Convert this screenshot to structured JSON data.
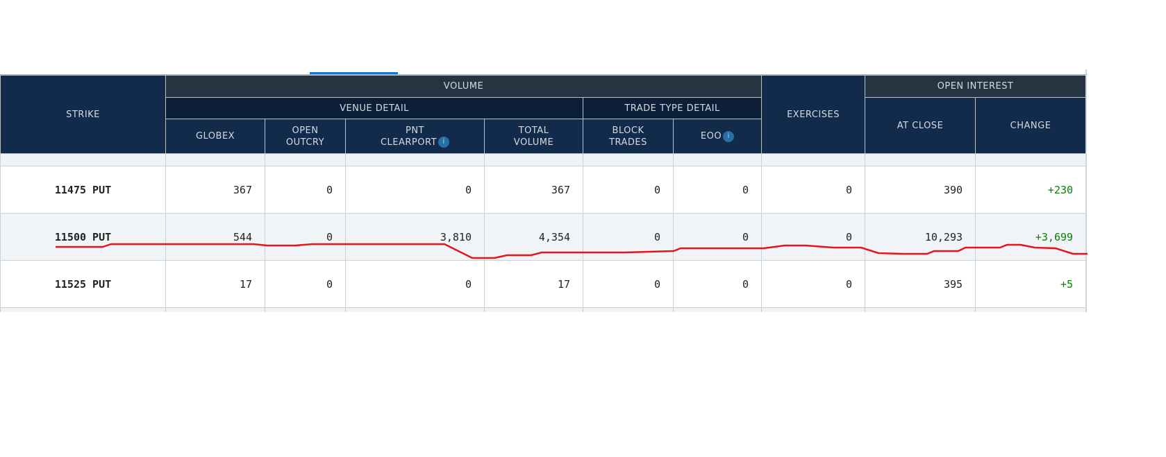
{
  "table": {
    "group_headers": {
      "strike": "STRIKE",
      "volume": "VOLUME",
      "exercises": "EXERCISES",
      "open_interest": "OPEN INTEREST"
    },
    "sub_headers": {
      "venue_detail": "VENUE DETAIL",
      "trade_type_detail": "TRADE TYPE DETAIL"
    },
    "columns": {
      "globex": "GLOBEX",
      "open_outcry_1": "OPEN",
      "open_outcry_2": "OUTCRY",
      "pnt_1": "PNT",
      "pnt_2": "CLEARPORT",
      "total_1": "TOTAL",
      "total_2": "VOLUME",
      "block_1": "BLOCK",
      "block_2": "TRADES",
      "eoo": "EOO",
      "at_close": "AT CLOSE",
      "change": "CHANGE"
    },
    "info_icon": "i",
    "rows": [
      {
        "strike": "11475 PUT",
        "globex": "367",
        "open_outcry": "0",
        "pnt_clearport": "0",
        "total_volume": "367",
        "block_trades": "0",
        "eoo": "0",
        "exercises": "0",
        "at_close": "390",
        "change": "+230"
      },
      {
        "strike": "11500 PUT",
        "globex": "544",
        "open_outcry": "0",
        "pnt_clearport": "3,810",
        "total_volume": "4,354",
        "block_trades": "0",
        "eoo": "0",
        "exercises": "0",
        "at_close": "10,293",
        "change": "+3,699"
      },
      {
        "strike": "11525 PUT",
        "globex": "17",
        "open_outcry": "0",
        "pnt_clearport": "0",
        "total_volume": "17",
        "block_trades": "0",
        "eoo": "0",
        "exercises": "0",
        "at_close": "395",
        "change": "+5"
      }
    ]
  },
  "colors": {
    "header_dark": "#263340",
    "header_navy": "#132b4a",
    "positive": "#0a7d0a",
    "annotation": "#e8141b",
    "tab_accent": "#1a73c4"
  }
}
